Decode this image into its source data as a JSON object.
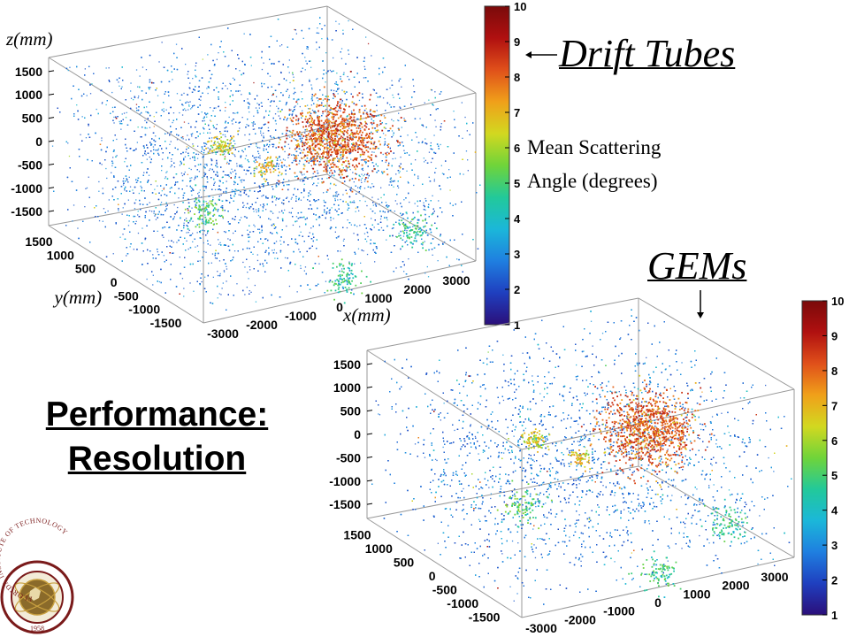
{
  "slide": {
    "title_line1": "Performance:",
    "title_line2": "Resolution"
  },
  "annotations": {
    "drift_tubes": "Drift Tubes",
    "gems": "GEMs",
    "colorbar_label_line1": "Mean Scattering",
    "colorbar_label_line2": "Angle (degrees)"
  },
  "logo": {
    "ring_text": "FLORIDA INSTITUTE OF TECHNOLOGY",
    "year": "1958"
  },
  "chart_data": [
    {
      "type": "scatter3d",
      "name": "Drift Tubes",
      "axes": {
        "x": {
          "label": "x(mm)",
          "ticks": [
            -3000,
            -2000,
            -1000,
            0,
            1000,
            2000,
            3000
          ],
          "range": [
            -3500,
            3500
          ]
        },
        "y": {
          "label": "y(mm)",
          "ticks": [
            1500,
            1000,
            500,
            0,
            -500,
            -1000,
            -1500
          ],
          "range": [
            -1800,
            1800
          ]
        },
        "z": {
          "label": "z(mm)",
          "ticks": [
            1500,
            1000,
            500,
            0,
            -500,
            -1000,
            -1500
          ],
          "range": [
            -1800,
            1800
          ]
        }
      },
      "colorbar": {
        "min": 1,
        "max": 10,
        "ticks": [
          1,
          2,
          3,
          4,
          5,
          6,
          7,
          8,
          9,
          10
        ]
      }
    },
    {
      "type": "scatter3d",
      "name": "GEMs",
      "axes": {
        "x": {
          "label": "",
          "ticks": [
            -3000,
            -2000,
            -1000,
            0,
            1000,
            2000,
            3000
          ],
          "range": [
            -3500,
            3500
          ]
        },
        "y": {
          "label": "",
          "ticks": [
            1500,
            1000,
            500,
            0,
            -500,
            -1000,
            -1500
          ],
          "range": [
            -1800,
            1800
          ]
        },
        "z": {
          "label": "",
          "ticks": [
            1500,
            1000,
            500,
            0,
            -500,
            -1000,
            -1500
          ],
          "range": [
            -1800,
            1800
          ]
        }
      },
      "colorbar": {
        "min": 1,
        "max": 10,
        "ticks": [
          1,
          2,
          3,
          4,
          5,
          6,
          7,
          8,
          9,
          10
        ]
      }
    }
  ],
  "colors": {
    "colormap": [
      "#2b0f7a",
      "#1f3fbf",
      "#1f7fe0",
      "#1bb7d9",
      "#22c99a",
      "#6fd43a",
      "#d2d820",
      "#f0a01a",
      "#e0501a",
      "#b01010",
      "#7a0a0a"
    ],
    "box_line": "#999999",
    "logo_red": "#7a1a1a",
    "logo_gold": "#c8a040"
  }
}
